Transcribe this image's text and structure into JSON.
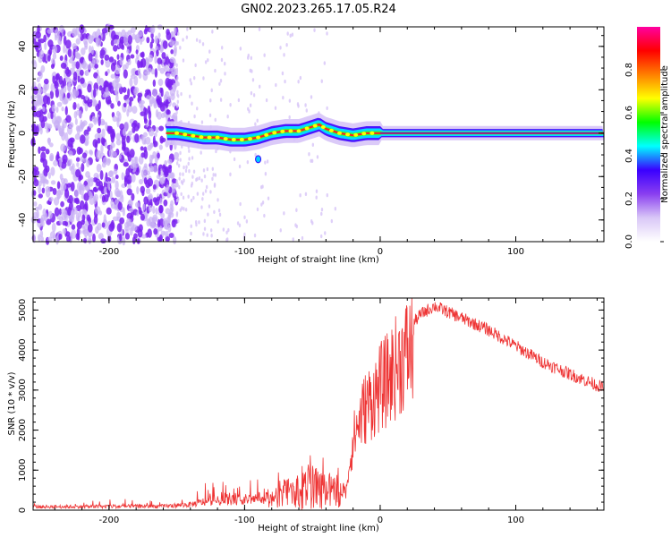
{
  "title": "GN02.2023.265.17.05.R24",
  "colors": {
    "snr_line": "#ee3333",
    "axis": "#000000",
    "colormap": [
      "#ffffff",
      "#d9c7f7",
      "#8a3ff0",
      "#3a00ff",
      "#00ffff",
      "#00ff00",
      "#ffff00",
      "#ff7f00",
      "#ff0000",
      "#ff00a0"
    ]
  },
  "chart_data": [
    {
      "type": "heatmap",
      "xlabel": "Height of straight line (km)",
      "ylabel": "Frequency (Hz)",
      "xlim": [
        -256,
        165
      ],
      "ylim": [
        -50,
        49
      ],
      "x_ticks": [
        -200,
        -100,
        0,
        100
      ],
      "y_ticks": [
        -40,
        -20,
        0,
        20,
        40
      ],
      "colorbar": {
        "label": "Normalized spectral amplitude",
        "range": [
          0,
          1
        ],
        "ticks": [
          0.0,
          0.2,
          0.4,
          0.6,
          0.8
        ]
      },
      "ridge": {
        "description_regions": [
          "noise",
          "signal"
        ],
        "signal_start_x": -158,
        "noise_end_x": -150,
        "center_freq": [
          [
            -158,
            0
          ],
          [
            -150,
            0
          ],
          [
            -140,
            -1
          ],
          [
            -130,
            -2
          ],
          [
            -120,
            -2
          ],
          [
            -110,
            -3
          ],
          [
            -100,
            -3
          ],
          [
            -90,
            -2
          ],
          [
            -80,
            0
          ],
          [
            -70,
            1
          ],
          [
            -60,
            1
          ],
          [
            -50,
            3
          ],
          [
            -45,
            4
          ],
          [
            -40,
            2
          ],
          [
            -30,
            0
          ],
          [
            -20,
            -1
          ],
          [
            -10,
            0
          ],
          [
            0,
            0
          ],
          [
            50,
            0
          ],
          [
            100,
            0
          ],
          [
            165,
            0
          ]
        ],
        "outlier": [
          -90,
          -12
        ]
      }
    },
    {
      "type": "line",
      "xlabel": "Height of straight line (km)",
      "ylabel": "SNR (10 * v/v)",
      "xlim": [
        -256,
        165
      ],
      "ylim": [
        0,
        5300
      ],
      "x_ticks": [
        -200,
        -100,
        0,
        100
      ],
      "y_ticks": [
        0,
        1000,
        2000,
        3000,
        4000,
        5000
      ],
      "series": [
        {
          "envelope": [
            [
              -256,
              120
            ],
            [
              -200,
              130
            ],
            [
              -160,
              140
            ],
            [
              -140,
              200
            ],
            [
              -130,
              300
            ],
            [
              -120,
              330
            ],
            [
              -110,
              350
            ],
            [
              -100,
              380
            ],
            [
              -90,
              420
            ],
            [
              -80,
              500
            ],
            [
              -70,
              700
            ],
            [
              -60,
              900
            ],
            [
              -50,
              1000
            ],
            [
              -40,
              900
            ],
            [
              -30,
              700
            ],
            [
              -25,
              700
            ],
            [
              -20,
              2000
            ],
            [
              -15,
              2600
            ],
            [
              -10,
              3000
            ],
            [
              -5,
              3200
            ],
            [
              0,
              3500
            ],
            [
              5,
              3700
            ],
            [
              10,
              4000
            ],
            [
              20,
              4500
            ],
            [
              30,
              4900
            ],
            [
              40,
              5100
            ],
            [
              50,
              4950
            ],
            [
              60,
              4800
            ],
            [
              80,
              4500
            ],
            [
              100,
              4100
            ],
            [
              120,
              3700
            ],
            [
              140,
              3400
            ],
            [
              165,
              3050
            ]
          ]
        }
      ]
    }
  ]
}
